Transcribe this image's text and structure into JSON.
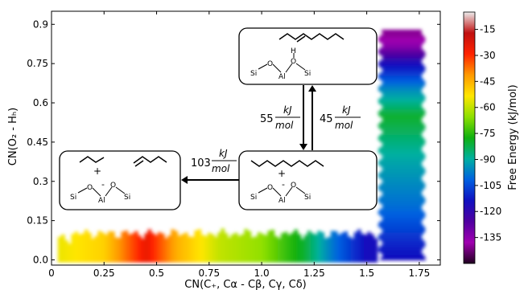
{
  "chart_data": {
    "type": "heatmap",
    "title": "",
    "xlabel": "CN(C₊, Cα - Cβ, Cγ, Cδ)",
    "ylabel": "CN(O₂ - Hₕ)",
    "xlim": [
      0,
      1.85
    ],
    "ylim": [
      -0.02,
      0.95
    ],
    "xticks": [
      "0",
      "0.25",
      "0.5",
      "0.75",
      "1.0",
      "1.25",
      "1.5",
      "1.75"
    ],
    "xtick_values": [
      0,
      0.25,
      0.5,
      0.75,
      1.0,
      1.25,
      1.5,
      1.75
    ],
    "yticks": [
      "0.0",
      "0.15",
      "0.3",
      "0.45",
      "0.6",
      "0.75",
      "0.9"
    ],
    "ytick_values": [
      0,
      0.15,
      0.3,
      0.45,
      0.6,
      0.75,
      0.9
    ],
    "colorbar": {
      "label": "Free Energy (kJ/mol)",
      "ticks": [
        "-15",
        "-30",
        "-45",
        "-60",
        "-75",
        "-90",
        "-105",
        "-120",
        "-135"
      ],
      "tick_values": [
        -15,
        -30,
        -45,
        -60,
        -75,
        -90,
        -105,
        -120,
        -135
      ],
      "range": [
        -150,
        -5
      ],
      "colors": [
        "#ececec",
        "#c01010",
        "#ff2200",
        "#ff9900",
        "#ffe600",
        "#8ee000",
        "#10b010",
        "#00b0a0",
        "#0060e0",
        "#1010c0",
        "#5000a0",
        "#a000b0",
        "#200020"
      ]
    },
    "regions": [
      {
        "name": "horizontal band",
        "x": [
          0.03,
          1.55
        ],
        "y": [
          0.0,
          0.1
        ],
        "energy_profile": [
          [
            0.05,
            -55
          ],
          [
            0.25,
            -50
          ],
          [
            0.45,
            -25
          ],
          [
            0.6,
            -45
          ],
          [
            0.8,
            -60
          ],
          [
            1.0,
            -65
          ],
          [
            1.2,
            -80
          ],
          [
            1.35,
            -100
          ],
          [
            1.5,
            -115
          ]
        ]
      },
      {
        "name": "vertical column",
        "x": [
          1.55,
          1.78
        ],
        "y": [
          0.0,
          0.88
        ],
        "energy_profile": [
          [
            0.0,
            -115
          ],
          [
            0.2,
            -100
          ],
          [
            0.4,
            -90
          ],
          [
            0.55,
            -80
          ],
          [
            0.65,
            -95
          ],
          [
            0.75,
            -115
          ],
          [
            0.82,
            -135
          ],
          [
            0.86,
            -140
          ]
        ]
      }
    ],
    "annotations": {
      "arrow_down_energy": "55",
      "arrow_up_energy": "45",
      "arrow_left_energy": "103",
      "unit_top": "kJ",
      "unit_bottom": "mol",
      "plus_sign": "+",
      "minus_sign": "-",
      "atoms": {
        "si": "Si",
        "o": "O",
        "al": "Al",
        "h": "H"
      }
    }
  }
}
